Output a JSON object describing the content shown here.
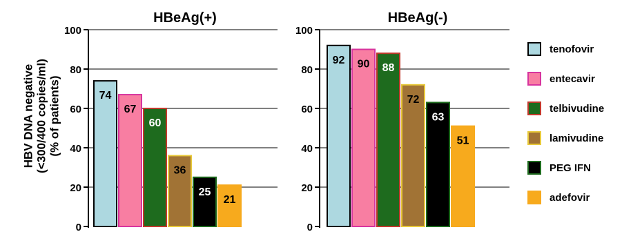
{
  "chart_data": [
    {
      "type": "bar",
      "title": "HBeAg(+)",
      "ylabel": [
        "HBV DNA negative",
        "(<300/400 copies/ml)",
        "(% of patients)"
      ],
      "ylim": [
        0,
        100
      ],
      "yticks": [
        "0",
        "20",
        "40",
        "60",
        "80",
        "100"
      ],
      "grid": true,
      "categories": [
        "tenofovir",
        "entecavir",
        "telbivudine",
        "lamivudine",
        "PEG IFN",
        "adefovir"
      ],
      "values": [
        74,
        67,
        60,
        36,
        25,
        21
      ],
      "data_labels": [
        "74",
        "67",
        "60",
        "36",
        "25",
        "21"
      ]
    },
    {
      "type": "bar",
      "title": "HBeAg(-)",
      "ylim": [
        0,
        100
      ],
      "yticks": [
        "0",
        "20",
        "40",
        "60",
        "80",
        "100"
      ],
      "grid": true,
      "categories": [
        "tenofovir",
        "entecavir",
        "telbivudine",
        "lamivudine",
        "PEG IFN",
        "adefovir"
      ],
      "values": [
        92,
        90,
        88,
        72,
        63,
        51
      ],
      "data_labels": [
        "92",
        "90",
        "88",
        "72",
        "63",
        "51"
      ]
    }
  ],
  "legend": {
    "placement": "right",
    "items": [
      {
        "label": "tenofovir",
        "fill": "#add8e0",
        "border": "#000000"
      },
      {
        "label": "entecavir",
        "fill": "#f87ea2",
        "border": "#d7349e"
      },
      {
        "label": "telbivudine",
        "fill": "#1e6b1e",
        "border": "#c0392b"
      },
      {
        "label": "lamivudine",
        "fill": "#a17335",
        "border": "#e8c93a"
      },
      {
        "label": "PEG IFN",
        "fill": "#000000",
        "border": "#1e6b1e"
      },
      {
        "label": "adefovir",
        "fill": "#f7aa1d",
        "border": "#f7aa1d"
      }
    ]
  },
  "label_colors": [
    "#000000",
    "#000000",
    "#ffffff",
    "#000000",
    "#ffffff",
    "#000000"
  ]
}
